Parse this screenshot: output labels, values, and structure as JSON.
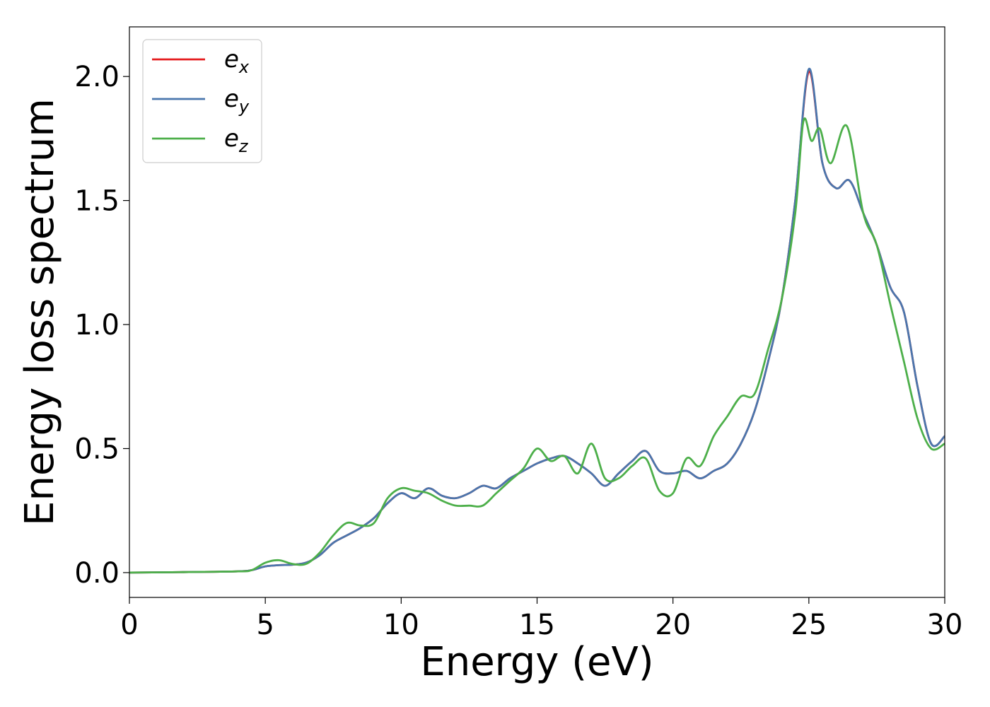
{
  "chart_data": {
    "type": "line",
    "xlabel": "Energy (eV)",
    "ylabel": "Energy loss spectrum",
    "xlim": [
      0,
      30
    ],
    "ylim": [
      -0.1,
      2.2
    ],
    "xticks": [
      0,
      5,
      10,
      15,
      20,
      25,
      30
    ],
    "xtick_labels": [
      "0",
      "5",
      "10",
      "15",
      "20",
      "25",
      "30"
    ],
    "yticks": [
      0.0,
      0.5,
      1.0,
      1.5,
      2.0
    ],
    "ytick_labels": [
      "0.0",
      "0.5",
      "1.0",
      "1.5",
      "2.0"
    ],
    "grid": false,
    "legend_position": "top-left",
    "series": [
      {
        "name": "e_x",
        "legend_base": "e",
        "legend_sub": "x",
        "color": "#e41a1c",
        "x": [
          0,
          2,
          4,
          4.5,
          5,
          5.5,
          6,
          6.5,
          7,
          7.5,
          8,
          8.5,
          9,
          9.5,
          10,
          10.5,
          11,
          11.5,
          12,
          12.5,
          13,
          13.5,
          14,
          14.5,
          15,
          15.5,
          16,
          16.5,
          17,
          17.5,
          18,
          18.5,
          19,
          19.5,
          20,
          20.5,
          21,
          21.5,
          22,
          22.5,
          23,
          23.5,
          24,
          24.5,
          25,
          25.5,
          26,
          26.5,
          27,
          27.5,
          28,
          28.5,
          29,
          29.5,
          30
        ],
        "y": [
          0,
          0.002,
          0.005,
          0.01,
          0.025,
          0.03,
          0.032,
          0.04,
          0.07,
          0.12,
          0.15,
          0.18,
          0.22,
          0.28,
          0.32,
          0.3,
          0.34,
          0.31,
          0.3,
          0.32,
          0.35,
          0.34,
          0.38,
          0.41,
          0.44,
          0.46,
          0.47,
          0.44,
          0.4,
          0.35,
          0.4,
          0.45,
          0.49,
          0.41,
          0.4,
          0.41,
          0.38,
          0.41,
          0.44,
          0.52,
          0.65,
          0.85,
          1.1,
          1.5,
          2.02,
          1.65,
          1.55,
          1.58,
          1.45,
          1.32,
          1.15,
          1.05,
          0.75,
          0.52,
          0.55
        ]
      },
      {
        "name": "e_y",
        "legend_base": "e",
        "legend_sub": "y",
        "color": "#4a76ad",
        "x": [
          0,
          2,
          4,
          4.5,
          5,
          5.5,
          6,
          6.5,
          7,
          7.5,
          8,
          8.5,
          9,
          9.5,
          10,
          10.5,
          11,
          11.5,
          12,
          12.5,
          13,
          13.5,
          14,
          14.5,
          15,
          15.5,
          16,
          16.5,
          17,
          17.5,
          18,
          18.5,
          19,
          19.5,
          20,
          20.5,
          21,
          21.5,
          22,
          22.5,
          23,
          23.5,
          24,
          24.5,
          25,
          25.5,
          26,
          26.5,
          27,
          27.5,
          28,
          28.5,
          29,
          29.5,
          30
        ],
        "y": [
          0,
          0.002,
          0.005,
          0.01,
          0.025,
          0.03,
          0.032,
          0.04,
          0.07,
          0.12,
          0.15,
          0.18,
          0.22,
          0.28,
          0.32,
          0.3,
          0.34,
          0.31,
          0.3,
          0.32,
          0.35,
          0.34,
          0.38,
          0.41,
          0.44,
          0.46,
          0.47,
          0.44,
          0.4,
          0.35,
          0.4,
          0.45,
          0.49,
          0.41,
          0.4,
          0.41,
          0.38,
          0.41,
          0.44,
          0.52,
          0.65,
          0.85,
          1.1,
          1.5,
          2.03,
          1.65,
          1.55,
          1.58,
          1.45,
          1.32,
          1.15,
          1.05,
          0.75,
          0.52,
          0.55
        ]
      },
      {
        "name": "e_z",
        "legend_base": "e",
        "legend_sub": "z",
        "color": "#4daf4a",
        "x": [
          0,
          2,
          4,
          4.5,
          5,
          5.5,
          6,
          6.5,
          7,
          7.5,
          8,
          8.5,
          9,
          9.5,
          10,
          10.5,
          11,
          11.5,
          12,
          12.5,
          13,
          13.5,
          14,
          14.5,
          15,
          15.5,
          16,
          16.5,
          17,
          17.5,
          18,
          18.5,
          19,
          19.5,
          20,
          20.5,
          21,
          21.5,
          22,
          22.5,
          23,
          23.5,
          24,
          24.5,
          24.8,
          25.1,
          25.4,
          25.8,
          26.4,
          27,
          27.5,
          28,
          28.5,
          29,
          29.5,
          30
        ],
        "y": [
          0,
          0.002,
          0.005,
          0.01,
          0.04,
          0.05,
          0.035,
          0.035,
          0.08,
          0.15,
          0.2,
          0.19,
          0.2,
          0.3,
          0.34,
          0.33,
          0.32,
          0.29,
          0.27,
          0.27,
          0.27,
          0.32,
          0.37,
          0.42,
          0.5,
          0.45,
          0.47,
          0.4,
          0.52,
          0.38,
          0.38,
          0.43,
          0.46,
          0.33,
          0.32,
          0.46,
          0.43,
          0.55,
          0.63,
          0.71,
          0.72,
          0.9,
          1.1,
          1.45,
          1.82,
          1.74,
          1.79,
          1.65,
          1.8,
          1.45,
          1.32,
          1.08,
          0.85,
          0.62,
          0.5,
          0.52
        ]
      }
    ]
  }
}
